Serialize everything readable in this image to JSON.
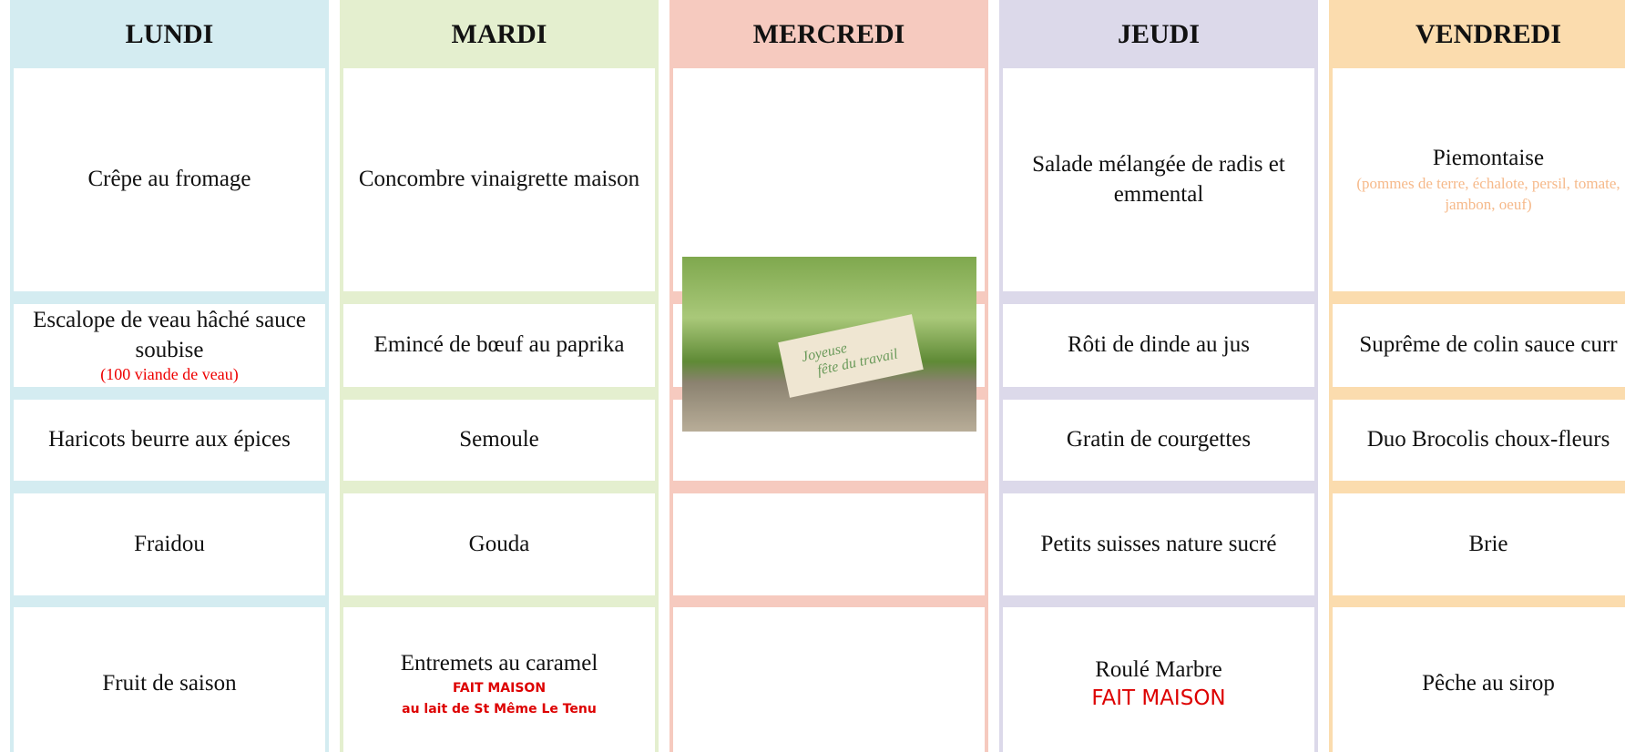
{
  "days": [
    {
      "name": "LUNDI",
      "cells": [
        {
          "text": "Crêpe au fromage"
        },
        {
          "text": "Escalope de veau hâché sauce soubise",
          "notes": [
            "(100 viande de veau)"
          ]
        },
        {
          "text": "Haricots beurre aux épices"
        },
        {
          "text": "Fraidou"
        },
        {
          "text": "Fruit de saison"
        }
      ]
    },
    {
      "name": "MARDI",
      "cells": [
        {
          "text": "Concombre vinaigrette maison"
        },
        {
          "text": "Emincé de bœuf au paprika"
        },
        {
          "text": "Semoule"
        },
        {
          "text": "Gouda"
        },
        {
          "text": "Entremets au caramel",
          "notes": [
            "FAIT MAISON",
            "au lait de St Même Le Tenu"
          ]
        }
      ]
    },
    {
      "name": "MERCREDI",
      "cells": [
        {},
        {},
        {},
        {},
        {}
      ],
      "image_caption": [
        "Joyeuse",
        "fête du travail"
      ]
    },
    {
      "name": "JEUDI",
      "cells": [
        {
          "text": "Salade mélangée de radis et emmental"
        },
        {
          "text": "Rôti de dinde au jus"
        },
        {
          "text": "Gratin de courgettes"
        },
        {
          "text": "Petits suisses nature sucré"
        },
        {
          "text": "Roulé Marbre",
          "notes": [
            "FAIT MAISON"
          ]
        }
      ]
    },
    {
      "name": "VENDREDI",
      "cells": [
        {
          "text": "Piemontaise",
          "notes": [
            "(pommes de terre, échalote, persil, tomate, jambon, oeuf)"
          ]
        },
        {
          "text": "Suprême de colin sauce curr"
        },
        {
          "text": "Duo Brocolis choux-fleurs"
        },
        {
          "text": "Brie"
        },
        {
          "text": "Pêche au sirop"
        }
      ]
    }
  ]
}
